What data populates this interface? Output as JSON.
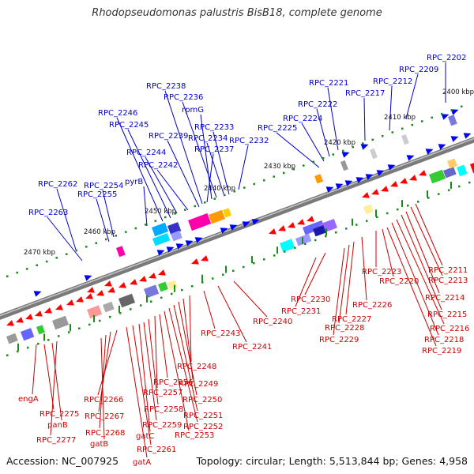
{
  "title": "Rhodopseudomonas palustris BisB18, complete genome",
  "footer": {
    "accession": "Accession: NC_007925",
    "topology": "Topology: circular; Length: 5,513,844 bp; Genes: 4,958"
  },
  "colors": {
    "label_top": "#0000cc",
    "label_bottom": "#cc0000",
    "forward_gene": "#0000ff",
    "reverse_gene": "#ff0000",
    "tick": "#1a8a1a",
    "backbone": "#808080"
  },
  "scale": {
    "ticks": [
      "2470 kbp",
      "2460 kbp",
      "2450 kbp",
      "2440 kbp",
      "2430 kbp",
      "2420 kbp",
      "2410 kbp",
      "2400 kbp"
    ]
  },
  "labels_top": [
    "RPC_2202",
    "RPC_2209",
    "RPC_2212",
    "RPC_2217",
    "RPC_2221",
    "RPC_2222",
    "RPC_2224",
    "RPC_2225",
    "RPC_2232",
    "RPC_2233",
    "RPC_2234",
    "RPC_2236",
    "rpmG",
    "RPC_2237",
    "RPC_2238",
    "RPC_2239",
    "RPC_2242",
    "RPC_2244",
    "RPC_2245",
    "RPC_2246",
    "pyrB",
    "RPC_2254",
    "RPC_2255",
    "RPC_2262",
    "RPC_2263"
  ],
  "labels_bottom": [
    "RPC_2211",
    "RPC_2213",
    "RPC_2214",
    "RPC_2215",
    "RPC_2216",
    "RPC_2218",
    "RPC_2219",
    "RPC_2220",
    "RPC_2223",
    "RPC_2226",
    "RPC_2227",
    "RPC_2228",
    "RPC_2229",
    "RPC_2230",
    "RPC_2231",
    "RPC_2240",
    "RPC_2241",
    "RPC_2243",
    "RPC_2248",
    "RPC_2249",
    "RPC_2250",
    "RPC_2251",
    "RPC_2252",
    "RPC_2253",
    "RPC_2256",
    "RPC_2257",
    "RPC_2258",
    "RPC_2259",
    "gatC",
    "RPC_2261",
    "gatA",
    "RPC_2266",
    "RPC_2267",
    "RPC_2268",
    "gatB",
    "engA",
    "RPC_2275",
    "panB",
    "RPC_2277"
  ]
}
